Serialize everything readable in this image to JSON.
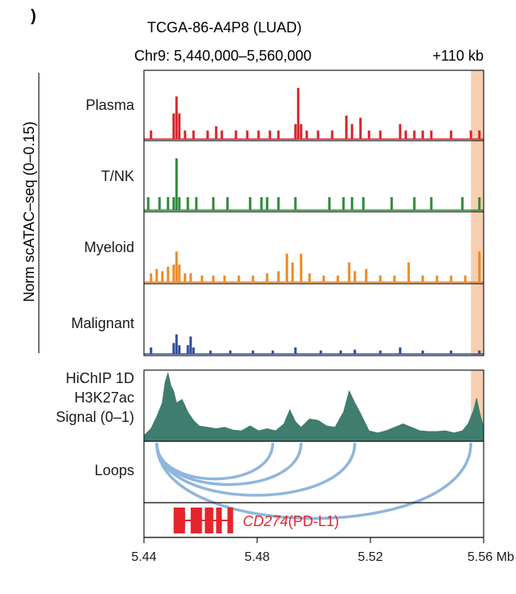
{
  "panel_mark": ")",
  "sample": "TCGA-86-A4P8 (LUAD)",
  "region": "Chr9: 5,440,000–5,560,000",
  "offset_label": "+110 kb",
  "y_axis_label": "Norm scATAC–seq (0–0.15)",
  "colors": {
    "plasma": "#d7262e",
    "tnk": "#2e8b3a",
    "myeloid": "#f08a24",
    "malignant": "#2f4f9b",
    "hichip": "#3f7d6f",
    "loops": "#8fb6dd",
    "gene": "#e3262b",
    "highlight": "#f6cfb2"
  },
  "chart_data": {
    "type": "area",
    "x_range": [
      5.44,
      5.56
    ],
    "x_unit": "Mb",
    "x_ticks": [
      "5.44",
      "5.48",
      "5.52",
      "5.56 Mb"
    ],
    "x_tick_values": [
      5.44,
      5.48,
      5.52,
      5.56
    ],
    "highlight_region": [
      5.5555,
      5.56
    ],
    "tracks": [
      {
        "name": "Plasma",
        "color_key": "plasma",
        "ylim": [
          0,
          0.15
        ],
        "peaks": [
          [
            5.4425,
            0.02
          ],
          [
            5.4505,
            0.06
          ],
          [
            5.4515,
            0.1
          ],
          [
            5.4525,
            0.06
          ],
          [
            5.4545,
            0.02
          ],
          [
            5.4575,
            0.02
          ],
          [
            5.4625,
            0.02
          ],
          [
            5.4655,
            0.03
          ],
          [
            5.4675,
            0.02
          ],
          [
            5.4725,
            0.02
          ],
          [
            5.4765,
            0.02
          ],
          [
            5.4805,
            0.02
          ],
          [
            5.4845,
            0.02
          ],
          [
            5.4875,
            0.02
          ],
          [
            5.4935,
            0.035
          ],
          [
            5.4945,
            0.12
          ],
          [
            5.4955,
            0.035
          ],
          [
            5.4975,
            0.02
          ],
          [
            5.5015,
            0.02
          ],
          [
            5.5065,
            0.02
          ],
          [
            5.5115,
            0.055
          ],
          [
            5.5135,
            0.035
          ],
          [
            5.5165,
            0.05
          ],
          [
            5.5195,
            0.02
          ],
          [
            5.5235,
            0.02
          ],
          [
            5.5305,
            0.035
          ],
          [
            5.5325,
            0.02
          ],
          [
            5.5355,
            0.02
          ],
          [
            5.5385,
            0.02
          ],
          [
            5.5415,
            0.02
          ],
          [
            5.5485,
            0.02
          ],
          [
            5.5555,
            0.02
          ],
          [
            5.5585,
            0.02
          ]
        ]
      },
      {
        "name": "T/NK",
        "color_key": "tnk",
        "ylim": [
          0,
          0.15
        ],
        "peaks": [
          [
            5.4415,
            0.03
          ],
          [
            5.4455,
            0.03
          ],
          [
            5.4485,
            0.03
          ],
          [
            5.4505,
            0.03
          ],
          [
            5.4515,
            0.12
          ],
          [
            5.4525,
            0.03
          ],
          [
            5.4555,
            0.03
          ],
          [
            5.4585,
            0.03
          ],
          [
            5.4645,
            0.03
          ],
          [
            5.4695,
            0.03
          ],
          [
            5.4775,
            0.03
          ],
          [
            5.4815,
            0.03
          ],
          [
            5.4835,
            0.03
          ],
          [
            5.4875,
            0.03
          ],
          [
            5.4935,
            0.03
          ],
          [
            5.5055,
            0.03
          ],
          [
            5.5105,
            0.03
          ],
          [
            5.5135,
            0.03
          ],
          [
            5.5175,
            0.03
          ],
          [
            5.5275,
            0.03
          ],
          [
            5.5355,
            0.03
          ],
          [
            5.5415,
            0.03
          ],
          [
            5.5525,
            0.03
          ],
          [
            5.5585,
            0.03
          ]
        ]
      },
      {
        "name": "Myeloid",
        "color_key": "myeloid",
        "ylim": [
          0,
          0.15
        ],
        "peaks": [
          [
            5.4425,
            0.02
          ],
          [
            5.4445,
            0.03
          ],
          [
            5.4465,
            0.025
          ],
          [
            5.4485,
            0.035
          ],
          [
            5.4505,
            0.04
          ],
          [
            5.4515,
            0.07
          ],
          [
            5.4525,
            0.04
          ],
          [
            5.4545,
            0.02
          ],
          [
            5.4565,
            0.02
          ],
          [
            5.4605,
            0.015
          ],
          [
            5.4645,
            0.015
          ],
          [
            5.4685,
            0.015
          ],
          [
            5.4735,
            0.015
          ],
          [
            5.4785,
            0.015
          ],
          [
            5.4835,
            0.02
          ],
          [
            5.4875,
            0.025
          ],
          [
            5.4905,
            0.065
          ],
          [
            5.4925,
            0.045
          ],
          [
            5.4955,
            0.065
          ],
          [
            5.4985,
            0.02
          ],
          [
            5.5035,
            0.015
          ],
          [
            5.5085,
            0.015
          ],
          [
            5.5125,
            0.045
          ],
          [
            5.5145,
            0.025
          ],
          [
            5.5185,
            0.03
          ],
          [
            5.5235,
            0.015
          ],
          [
            5.5285,
            0.015
          ],
          [
            5.5335,
            0.045
          ],
          [
            5.5385,
            0.015
          ],
          [
            5.5435,
            0.015
          ],
          [
            5.5485,
            0.015
          ],
          [
            5.5535,
            0.015
          ],
          [
            5.5585,
            0.07
          ]
        ]
      },
      {
        "name": "Malignant",
        "color_key": "malignant",
        "ylim": [
          0,
          0.15
        ],
        "peaks": [
          [
            5.4425,
            0.015
          ],
          [
            5.4505,
            0.025
          ],
          [
            5.4515,
            0.045
          ],
          [
            5.4525,
            0.02
          ],
          [
            5.4555,
            0.02
          ],
          [
            5.4565,
            0.04
          ],
          [
            5.4575,
            0.015
          ],
          [
            5.4635,
            0.008
          ],
          [
            5.4705,
            0.008
          ],
          [
            5.4785,
            0.008
          ],
          [
            5.4855,
            0.008
          ],
          [
            5.4935,
            0.015
          ],
          [
            5.5025,
            0.008
          ],
          [
            5.5095,
            0.008
          ],
          [
            5.5145,
            0.01
          ],
          [
            5.5235,
            0.008
          ],
          [
            5.5305,
            0.015
          ],
          [
            5.5385,
            0.008
          ],
          [
            5.5485,
            0.008
          ],
          [
            5.5585,
            0.008
          ]
        ]
      }
    ],
    "hichip": {
      "name": "HiChIP 1D\nH3K27ac\nSignal (0–1)",
      "lines": [
        "HiChIP 1D",
        "H3K27ac",
        "Signal (0–1)"
      ],
      "ylim": [
        0,
        1
      ],
      "points": [
        [
          5.44,
          0.08
        ],
        [
          5.4425,
          0.18
        ],
        [
          5.4445,
          0.35
        ],
        [
          5.4465,
          0.55
        ],
        [
          5.4475,
          0.85
        ],
        [
          5.4485,
          0.98
        ],
        [
          5.4495,
          0.8
        ],
        [
          5.4505,
          0.72
        ],
        [
          5.4515,
          0.55
        ],
        [
          5.4535,
          0.6
        ],
        [
          5.4555,
          0.42
        ],
        [
          5.4575,
          0.3
        ],
        [
          5.4595,
          0.22
        ],
        [
          5.4625,
          0.2
        ],
        [
          5.4655,
          0.18
        ],
        [
          5.4685,
          0.2
        ],
        [
          5.4715,
          0.16
        ],
        [
          5.4745,
          0.15
        ],
        [
          5.4775,
          0.22
        ],
        [
          5.4805,
          0.15
        ],
        [
          5.4835,
          0.18
        ],
        [
          5.4865,
          0.15
        ],
        [
          5.4895,
          0.25
        ],
        [
          5.4915,
          0.45
        ],
        [
          5.4935,
          0.28
        ],
        [
          5.4955,
          0.2
        ],
        [
          5.4985,
          0.32
        ],
        [
          5.5015,
          0.3
        ],
        [
          5.5045,
          0.22
        ],
        [
          5.5075,
          0.2
        ],
        [
          5.5105,
          0.42
        ],
        [
          5.5125,
          0.72
        ],
        [
          5.5145,
          0.55
        ],
        [
          5.5165,
          0.4
        ],
        [
          5.5195,
          0.15
        ],
        [
          5.5225,
          0.12
        ],
        [
          5.5255,
          0.15
        ],
        [
          5.5285,
          0.2
        ],
        [
          5.5315,
          0.25
        ],
        [
          5.5345,
          0.2
        ],
        [
          5.5375,
          0.15
        ],
        [
          5.5405,
          0.14
        ],
        [
          5.5435,
          0.14
        ],
        [
          5.5465,
          0.15
        ],
        [
          5.5495,
          0.12
        ],
        [
          5.5525,
          0.15
        ],
        [
          5.5545,
          0.25
        ],
        [
          5.5565,
          0.45
        ],
        [
          5.5575,
          0.62
        ],
        [
          5.5585,
          0.42
        ],
        [
          5.56,
          0.2
        ]
      ]
    },
    "loops": {
      "name": "Loops",
      "anchor": 5.4445,
      "ends": [
        5.4855,
        5.4955,
        5.5145,
        5.5555
      ]
    },
    "gene": {
      "name": "CD274",
      "alias": "(PD-L1)",
      "start": 5.4505,
      "end": 5.4715,
      "exons": [
        5.4505,
        5.4545,
        5.4565,
        5.4605,
        5.4615,
        5.4645,
        5.4655,
        5.4675,
        5.4695,
        5.4715
      ]
    }
  }
}
